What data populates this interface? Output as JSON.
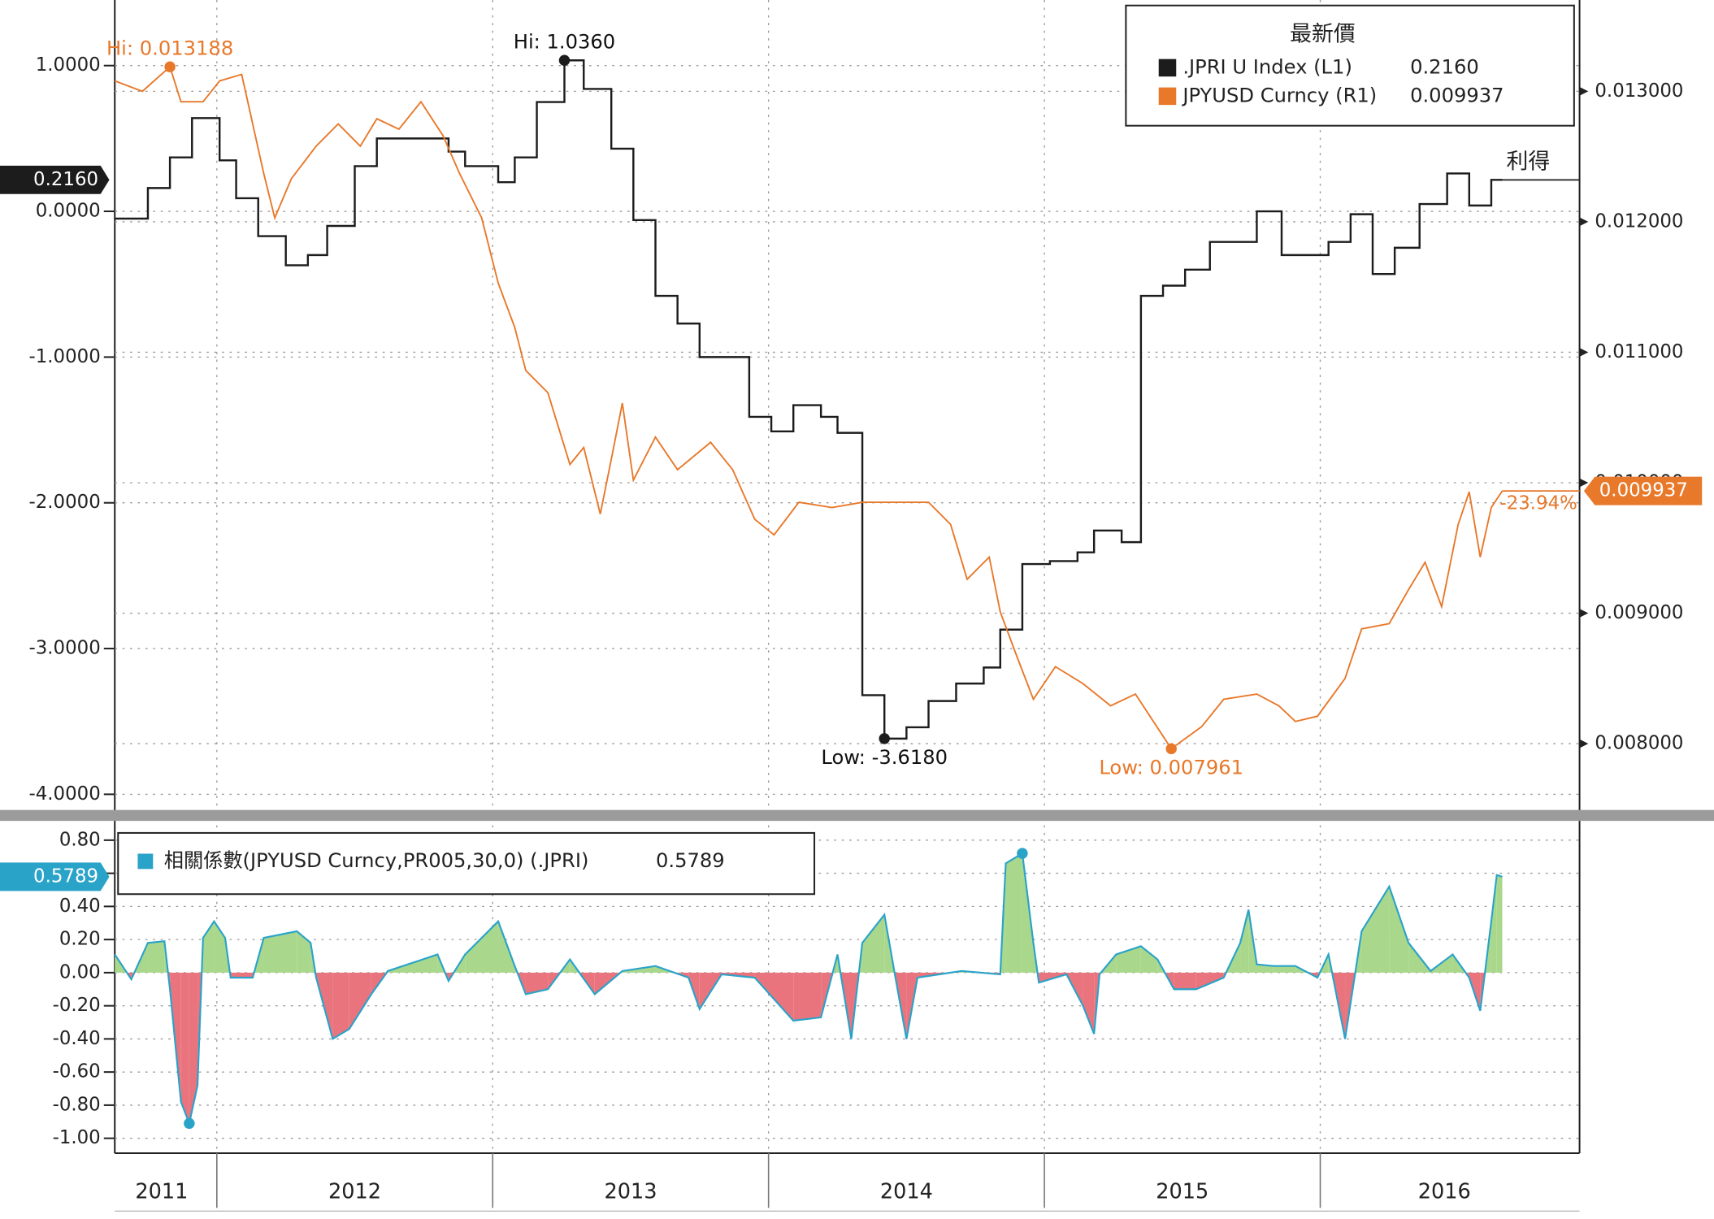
{
  "chart_data": [
    {
      "type": "line",
      "legend_title": "最新價",
      "xlim": [
        2011.63,
        2016.94
      ],
      "xticks": [
        2012,
        2013,
        2014,
        2015,
        2016
      ],
      "ylim": [
        -4.1,
        1.45
      ],
      "yticks": [
        {
          "value": 1,
          "label": "1.0000"
        },
        {
          "value": 0,
          "label": "0.0000"
        },
        {
          "value": -1,
          "label": "-1.0000"
        },
        {
          "value": -2,
          "label": "-2.0000"
        },
        {
          "value": -3,
          "label": "-3.0000"
        },
        {
          "value": -4,
          "label": "-4.0000"
        }
      ],
      "y2lim": [
        0.0075,
        0.0137
      ],
      "y2ticks": [
        {
          "value": 0.013,
          "label": "0.013000"
        },
        {
          "value": 0.012,
          "label": "0.012000"
        },
        {
          "value": 0.011,
          "label": "0.011000"
        },
        {
          "value": 0.01,
          "label": "0.010000"
        },
        {
          "value": 0.009,
          "label": "0.009000"
        },
        {
          "value": 0.008,
          "label": "0.008000"
        }
      ],
      "grid": true,
      "series": [
        {
          "name": ".JPRI U Index (L1)",
          "color": "#1c1c1c",
          "step": true,
          "last_label": "0.2160",
          "high_label": "Hi: 1.0360",
          "low_label": "Low: -3.6180",
          "end_note": "利得",
          "x": [
            2011.63,
            2011.75,
            2011.83,
            2011.91,
            2012.01,
            2012.07,
            2012.15,
            2012.25,
            2012.33,
            2012.4,
            2012.5,
            2012.58,
            2012.84,
            2012.9,
            2013.02,
            2013.08,
            2013.16,
            2013.26,
            2013.33,
            2013.43,
            2013.51,
            2013.59,
            2013.67,
            2013.75,
            2013.93,
            2014.01,
            2014.09,
            2014.19,
            2014.25,
            2014.34,
            2014.42,
            2014.5,
            2014.58,
            2014.68,
            2014.78,
            2014.84,
            2014.92,
            2015.02,
            2015.12,
            2015.18,
            2015.28,
            2015.35,
            2015.43,
            2015.51,
            2015.6,
            2015.77,
            2015.86,
            2016.03,
            2016.11,
            2016.19,
            2016.27,
            2016.36,
            2016.46,
            2016.54,
            2016.62,
            2016.66
          ],
          "values": [
            -0.05,
            0.16,
            0.37,
            0.64,
            0.35,
            0.09,
            -0.17,
            -0.37,
            -0.3,
            -0.1,
            0.31,
            0.5,
            0.41,
            0.31,
            0.2,
            0.37,
            0.75,
            1.036,
            0.84,
            0.43,
            -0.06,
            -0.58,
            -0.77,
            -1.0,
            -1.41,
            -1.51,
            -1.33,
            -1.41,
            -1.52,
            -3.32,
            -3.618,
            -3.54,
            -3.36,
            -3.24,
            -3.13,
            -2.87,
            -2.42,
            -2.4,
            -2.34,
            -2.19,
            -2.27,
            -0.58,
            -0.51,
            -0.4,
            -0.21,
            0.0,
            -0.3,
            -0.21,
            -0.02,
            -0.43,
            -0.25,
            0.05,
            0.26,
            0.04,
            0.216,
            0.216
          ]
        },
        {
          "name": "JPYUSD Curncy (R1)",
          "color": "#e8782a",
          "axis": "y2",
          "last_label": "0.009937",
          "high_label": "Hi: 0.013188",
          "low_label": "Low: 0.007961",
          "change": {
            "value": -23.94,
            "label": "-23.94%"
          },
          "x": [
            2011.63,
            2011.73,
            2011.83,
            2011.87,
            2011.95,
            2012.01,
            2012.09,
            2012.17,
            2012.21,
            2012.27,
            2012.36,
            2012.44,
            2012.52,
            2012.58,
            2012.66,
            2012.74,
            2012.82,
            2012.88,
            2012.96,
            2013.02,
            2013.08,
            2013.12,
            2013.2,
            2013.28,
            2013.33,
            2013.39,
            2013.43,
            2013.47,
            2013.51,
            2013.59,
            2013.67,
            2013.79,
            2013.87,
            2013.95,
            2014.02,
            2014.11,
            2014.23,
            2014.34,
            2014.46,
            2014.58,
            2014.66,
            2014.72,
            2014.8,
            2014.84,
            2014.9,
            2014.96,
            2015.04,
            2015.14,
            2015.24,
            2015.33,
            2015.46,
            2015.57,
            2015.65,
            2015.77,
            2015.85,
            2015.91,
            2015.99,
            2016.09,
            2016.15,
            2016.25,
            2016.32,
            2016.38,
            2016.44,
            2016.5,
            2016.54,
            2016.58,
            2016.62,
            2016.66
          ],
          "values": [
            0.01308,
            0.013,
            0.013188,
            0.01292,
            0.01292,
            0.01308,
            0.01313,
            0.01237,
            0.01203,
            0.01233,
            0.01258,
            0.01275,
            0.01258,
            0.01279,
            0.01271,
            0.01292,
            0.01266,
            0.01237,
            0.01203,
            0.01153,
            0.01119,
            0.01086,
            0.01069,
            0.01014,
            0.01027,
            0.00976,
            0.01018,
            0.01061,
            0.01002,
            0.01035,
            0.0101,
            0.01031,
            0.0101,
            0.00972,
            0.0096,
            0.00985,
            0.00981,
            0.00985,
            0.00985,
            0.00985,
            0.00968,
            0.00926,
            0.00943,
            0.00901,
            0.00867,
            0.00834,
            0.00859,
            0.00846,
            0.00829,
            0.00838,
            0.007961,
            0.00813,
            0.00834,
            0.00838,
            0.00829,
            0.00817,
            0.00821,
            0.0085,
            0.00888,
            0.00892,
            0.00918,
            0.00939,
            0.00905,
            0.00968,
            0.00993,
            0.00943,
            0.00981,
            0.009937
          ]
        }
      ]
    },
    {
      "type": "area",
      "xlim": [
        2011.63,
        2016.94
      ],
      "xticks": [
        2012,
        2013,
        2014,
        2015,
        2016
      ],
      "xtick_labels": [
        {
          "value": 2011.8,
          "label": "2011"
        },
        {
          "value": 2012.5,
          "label": "2012"
        },
        {
          "value": 2013.5,
          "label": "2013"
        },
        {
          "value": 2014.5,
          "label": "2014"
        },
        {
          "value": 2015.5,
          "label": "2015"
        },
        {
          "value": 2016.45,
          "label": "2016"
        }
      ],
      "ylim": [
        -1.09,
        0.89
      ],
      "yticks": [
        {
          "value": 0.8,
          "label": "0.80"
        },
        {
          "value": 0.6,
          "label": "0.60"
        },
        {
          "value": 0.4,
          "label": "0.40"
        },
        {
          "value": 0.2,
          "label": "0.20"
        },
        {
          "value": 0,
          "label": "0.00"
        },
        {
          "value": -0.2,
          "label": "-0.20"
        },
        {
          "value": -0.4,
          "label": "-0.40"
        },
        {
          "value": -0.6,
          "label": "-0.60"
        },
        {
          "value": -0.8,
          "label": "-0.80"
        },
        {
          "value": -1,
          "label": "-1.00"
        }
      ],
      "grid": true,
      "series": [
        {
          "name": "相關係數(JPYUSD Curncy,PR005,30,0) (.JPRI)",
          "color": "#2aa3c9",
          "positive_color": "#a9d88c",
          "negative_color": "#e9747e",
          "last_label": "0.5789",
          "x": [
            2011.63,
            2011.69,
            2011.75,
            2011.81,
            2011.83,
            2011.87,
            2011.9,
            2011.93,
            2011.95,
            2011.99,
            2012.03,
            2012.05,
            2012.13,
            2012.17,
            2012.29,
            2012.34,
            2012.36,
            2012.42,
            2012.48,
            2012.56,
            2012.62,
            2012.8,
            2012.84,
            2012.9,
            2013.02,
            2013.08,
            2013.12,
            2013.2,
            2013.28,
            2013.37,
            2013.47,
            2013.59,
            2013.71,
            2013.75,
            2013.83,
            2013.95,
            2014.09,
            2014.19,
            2014.25,
            2014.3,
            2014.34,
            2014.42,
            2014.46,
            2014.5,
            2014.54,
            2014.7,
            2014.84,
            2014.86,
            2014.92,
            2014.96,
            2014.98,
            2015.08,
            2015.14,
            2015.18,
            2015.2,
            2015.26,
            2015.35,
            2015.41,
            2015.47,
            2015.55,
            2015.65,
            2015.71,
            2015.74,
            2015.77,
            2015.83,
            2015.91,
            2015.99,
            2016.03,
            2016.09,
            2016.15,
            2016.25,
            2016.32,
            2016.4,
            2016.48,
            2016.54,
            2016.58,
            2016.62,
            2016.64,
            2016.66
          ],
          "values": [
            0.11,
            -0.04,
            0.18,
            0.19,
            -0.1,
            -0.78,
            -0.91,
            -0.68,
            0.21,
            0.31,
            0.21,
            -0.03,
            -0.03,
            0.21,
            0.25,
            0.18,
            -0.03,
            -0.4,
            -0.34,
            -0.13,
            0.01,
            0.11,
            -0.05,
            0.11,
            0.31,
            0.04,
            -0.13,
            -0.1,
            0.08,
            -0.13,
            0.01,
            0.04,
            -0.03,
            -0.22,
            -0.01,
            -0.03,
            -0.29,
            -0.27,
            0.11,
            -0.4,
            0.18,
            0.35,
            -0.03,
            -0.4,
            -0.03,
            0.01,
            -0.01,
            0.66,
            0.72,
            0.18,
            -0.06,
            -0.01,
            -0.2,
            -0.37,
            -0.01,
            0.11,
            0.16,
            0.08,
            -0.1,
            -0.1,
            -0.03,
            0.18,
            0.38,
            0.05,
            0.04,
            0.04,
            -0.03,
            0.11,
            -0.4,
            0.25,
            0.52,
            0.18,
            0.01,
            0.11,
            -0.03,
            -0.23,
            0.31,
            0.59,
            0.5789
          ]
        }
      ]
    }
  ]
}
